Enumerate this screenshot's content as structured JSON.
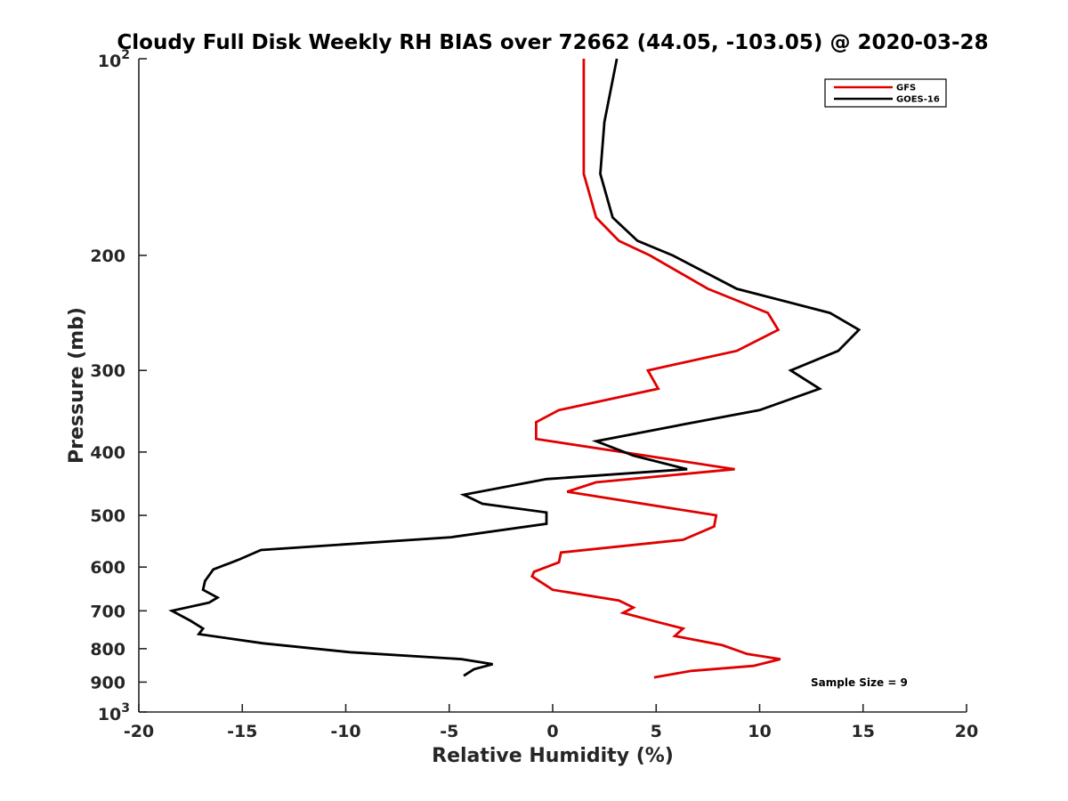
{
  "chart_data": {
    "type": "line",
    "title": "Cloudy Full Disk Weekly RH BIAS over 72662 (44.05, -103.05) @ 2020-03-28",
    "xlabel": "Relative Humidity (%)",
    "ylabel": "Pressure (mb)",
    "xlim": [
      -20,
      20
    ],
    "ylim": [
      100,
      1000
    ],
    "y_scale": "log",
    "y_reversed": true,
    "grid": false,
    "legend_position": "top-right",
    "x_ticks": [
      -20,
      -15,
      -10,
      -5,
      0,
      5,
      10,
      15,
      20
    ],
    "x_tick_labels": [
      "-20",
      "-15",
      "-10",
      "-5",
      "0",
      "5",
      "10",
      "15",
      "20"
    ],
    "y_ticks": [
      200,
      300,
      400,
      500,
      600,
      700,
      800,
      900
    ],
    "y_tick_labels": [
      "200",
      "300",
      "400",
      "500",
      "600",
      "700",
      "800",
      "900"
    ],
    "y_decade_labels": [
      {
        "value": 100,
        "base": "10",
        "exp": "2"
      },
      {
        "value": 1000,
        "base": "10",
        "exp": "3"
      }
    ],
    "annotation": "Sample Size = 9",
    "series": [
      {
        "name": "GFS",
        "color": "#e00000",
        "points": [
          [
            1.5,
            100
          ],
          [
            1.5,
            125
          ],
          [
            1.5,
            150
          ],
          [
            2.1,
            175
          ],
          [
            3.2,
            190
          ],
          [
            4.7,
            200
          ],
          [
            7.5,
            225
          ],
          [
            10.4,
            245
          ],
          [
            10.9,
            260
          ],
          [
            8.9,
            280
          ],
          [
            4.6,
            300
          ],
          [
            5.1,
            320
          ],
          [
            0.3,
            345
          ],
          [
            -0.8,
            360
          ],
          [
            -0.8,
            382
          ],
          [
            8.8,
            425
          ],
          [
            2.1,
            445
          ],
          [
            0.7,
            460
          ],
          [
            7.9,
            500
          ],
          [
            7.8,
            520
          ],
          [
            6.3,
            545
          ],
          [
            0.4,
            570
          ],
          [
            0.3,
            590
          ],
          [
            -0.9,
            610
          ],
          [
            -1.0,
            620
          ],
          [
            0.0,
            650
          ],
          [
            3.2,
            675
          ],
          [
            3.9,
            692
          ],
          [
            3.4,
            705
          ],
          [
            5.2,
            730
          ],
          [
            6.3,
            745
          ],
          [
            5.9,
            765
          ],
          [
            8.2,
            790
          ],
          [
            9.4,
            815
          ],
          [
            11.0,
            830
          ],
          [
            9.7,
            850
          ],
          [
            6.7,
            865
          ],
          [
            4.9,
            885
          ]
        ]
      },
      {
        "name": "GOES-16",
        "color": "#000000",
        "points": [
          [
            3.1,
            100
          ],
          [
            2.5,
            125
          ],
          [
            2.3,
            150
          ],
          [
            2.9,
            175
          ],
          [
            4.1,
            190
          ],
          [
            5.8,
            200
          ],
          [
            8.9,
            225
          ],
          [
            13.4,
            245
          ],
          [
            14.8,
            260
          ],
          [
            13.8,
            280
          ],
          [
            11.5,
            300
          ],
          [
            12.9,
            320
          ],
          [
            10.0,
            345
          ],
          [
            5.9,
            365
          ],
          [
            2.1,
            385
          ],
          [
            3.9,
            405
          ],
          [
            6.5,
            425
          ],
          [
            -0.3,
            440
          ],
          [
            -4.3,
            465
          ],
          [
            -3.4,
            480
          ],
          [
            -0.3,
            495
          ],
          [
            -0.3,
            515
          ],
          [
            -4.9,
            540
          ],
          [
            -14.1,
            565
          ],
          [
            -15.2,
            585
          ],
          [
            -16.4,
            605
          ],
          [
            -16.8,
            630
          ],
          [
            -16.9,
            650
          ],
          [
            -16.2,
            668
          ],
          [
            -16.6,
            680
          ],
          [
            -18.4,
            700
          ],
          [
            -17.5,
            725
          ],
          [
            -16.9,
            745
          ],
          [
            -17.1,
            760
          ],
          [
            -14.0,
            785
          ],
          [
            -9.8,
            810
          ],
          [
            -4.4,
            830
          ],
          [
            -2.9,
            845
          ],
          [
            -3.8,
            860
          ],
          [
            -4.3,
            880
          ]
        ]
      }
    ]
  }
}
